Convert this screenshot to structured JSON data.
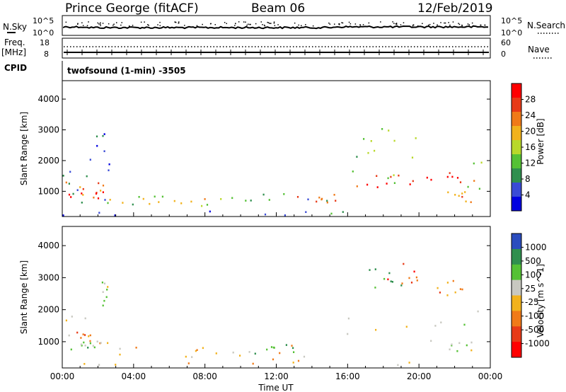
{
  "header": {
    "station": "Prince George (fitACF)",
    "beam": "Beam 06",
    "date": "12/Feb/2019"
  },
  "info_panel": {
    "nsky_label": "N.Sky",
    "nsearch_label": "N.Search",
    "freq_label_line1": "Freq.",
    "freq_label_line2": "[MHz]",
    "nave_label": "Nave",
    "cpid_label": "CPID",
    "cpid_text": "twofsound (1-min) -3505",
    "nsky_ticks": [
      "10^5",
      "10^0"
    ],
    "nsearch_ticks": [
      "10^5",
      "10^0"
    ],
    "freq_ticks": [
      "18",
      "8"
    ],
    "nave_ticks": [
      "60",
      "0"
    ]
  },
  "colorbars": {
    "power": {
      "label": "Power [dB]",
      "ticks": [
        "28",
        "24",
        "20",
        "16",
        "12",
        "8",
        "4"
      ],
      "colors": [
        "#0000e0",
        "#3a4bd6",
        "#2f8f4e",
        "#55c135",
        "#b8d82a",
        "#f2b21c",
        "#f07a18",
        "#e83a17",
        "#ff0000"
      ]
    },
    "velocity": {
      "label": "Velocity [m s^-1]",
      "ticks": [
        "1000",
        "500",
        "100",
        "25",
        "-25",
        "-100",
        "-500",
        "-1000"
      ],
      "colors": [
        "#2a4cbe",
        "#2f8f4e",
        "#55c135",
        "#c8c8c0",
        "#f2b21c",
        "#f07a18",
        "#e83a17",
        "#ff0000"
      ]
    }
  },
  "chart_data": [
    {
      "type": "heatmap",
      "title": "",
      "xlabel": "",
      "ylabel": "Slant Range [km]",
      "x_ticks": [
        "00:00",
        "04:00",
        "08:00",
        "12:00",
        "16:00",
        "20:00",
        "00:00"
      ],
      "y_ticks": [
        1000,
        2000,
        3000,
        4000
      ],
      "xlim": [
        0,
        24
      ],
      "ylim": [
        180,
        4600
      ],
      "colorbar": "power",
      "regions": [
        {
          "t0": 0.0,
          "t1": 2.8,
          "r0": 250,
          "r1": 1900,
          "level": 2
        },
        {
          "t0": 0.1,
          "t1": 2.8,
          "r0": 600,
          "r1": 1300,
          "level": 6
        },
        {
          "t0": 0.3,
          "t1": 2.3,
          "r0": 750,
          "r1": 1100,
          "level": 8
        },
        {
          "t0": 1.5,
          "t1": 2.8,
          "r0": 1500,
          "r1": 3100,
          "level": 1
        },
        {
          "t0": 2.8,
          "t1": 9.5,
          "r0": 500,
          "r1": 850,
          "level": 3
        },
        {
          "t0": 3.3,
          "t1": 8.0,
          "r0": 550,
          "r1": 750,
          "level": 5
        },
        {
          "t0": 9.5,
          "t1": 15.5,
          "r0": 250,
          "r1": 900,
          "level": 2
        },
        {
          "t0": 12.8,
          "t1": 15.5,
          "r0": 600,
          "r1": 900,
          "level": 6
        },
        {
          "t0": 15.5,
          "t1": 24.0,
          "r0": 1000,
          "r1": 2200,
          "level": 3
        },
        {
          "t0": 15.8,
          "t1": 24.0,
          "r0": 1100,
          "r1": 1700,
          "level": 7
        },
        {
          "t0": 17.0,
          "t1": 22.0,
          "r0": 1200,
          "r1": 1500,
          "level": 8
        },
        {
          "t0": 16.5,
          "t1": 20.0,
          "r0": 1800,
          "r1": 3500,
          "level": 4
        },
        {
          "t0": 21.5,
          "t1": 23.0,
          "r0": 600,
          "r1": 1000,
          "level": 6
        },
        {
          "t0": 0.0,
          "t1": 24.0,
          "r0": 200,
          "r1": 350,
          "level": 1
        }
      ]
    },
    {
      "type": "heatmap",
      "title": "",
      "xlabel": "Time UT",
      "ylabel": "Slant Range [km]",
      "x_ticks": [
        "00:00",
        "04:00",
        "08:00",
        "12:00",
        "16:00",
        "20:00",
        "00:00"
      ],
      "y_ticks": [
        1000,
        2000,
        3000,
        4000
      ],
      "xlim": [
        0,
        24
      ],
      "ylim": [
        180,
        4600
      ],
      "colorbar": "velocity",
      "regions": [
        {
          "t0": 0.0,
          "t1": 1.7,
          "r0": 650,
          "r1": 1900,
          "level": 3
        },
        {
          "t0": 0.7,
          "t1": 2.8,
          "r0": 800,
          "r1": 1500,
          "level": 5
        },
        {
          "t0": 1.0,
          "t1": 2.2,
          "r0": 750,
          "r1": 1000,
          "level": 2
        },
        {
          "t0": 2.2,
          "t1": 2.6,
          "r0": 1900,
          "r1": 3100,
          "level": 3
        },
        {
          "t0": 2.8,
          "t1": 8.0,
          "r0": 500,
          "r1": 800,
          "level": 4
        },
        {
          "t0": 7.5,
          "t1": 15.0,
          "r0": 250,
          "r1": 900,
          "level": 4
        },
        {
          "t0": 10.5,
          "t1": 13.0,
          "r0": 600,
          "r1": 900,
          "level": 2
        },
        {
          "t0": 15.5,
          "t1": 24.0,
          "r0": 1000,
          "r1": 2100,
          "level": 3
        },
        {
          "t0": 17.0,
          "t1": 19.5,
          "r0": 2300,
          "r1": 3300,
          "level": 1
        },
        {
          "t0": 18.0,
          "t1": 20.0,
          "r0": 2600,
          "r1": 3500,
          "level": 6
        },
        {
          "t0": 21.0,
          "t1": 22.5,
          "r0": 2400,
          "r1": 2900,
          "level": 5
        },
        {
          "t0": 21.3,
          "t1": 23.0,
          "r0": 600,
          "r1": 1000,
          "level": 3
        },
        {
          "t0": 0.0,
          "t1": 24.0,
          "r0": 200,
          "r1": 350,
          "level": 4
        }
      ]
    }
  ]
}
